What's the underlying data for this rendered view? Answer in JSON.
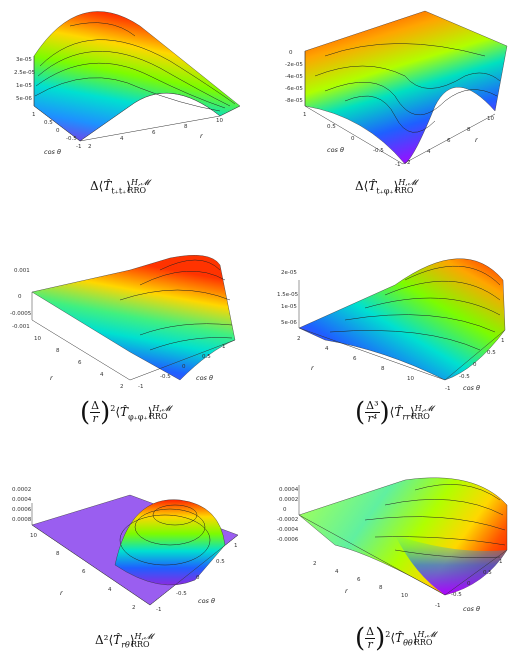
{
  "panels": [
    {
      "id": "ttt",
      "ticks_v": [
        "3e-05",
        "2.5e-05",
        "1e-05",
        "5e-06"
      ],
      "ticks_a": [
        "1",
        "0.5",
        "0",
        "-0.5",
        "-1"
      ],
      "ticks_b": [
        "2",
        "4",
        "6",
        "8",
        "10"
      ],
      "label_a": "cos θ",
      "label_b": "r",
      "caption": {
        "op": "Δ",
        "t": "T",
        "sub": "t₊t₊",
        "state": "H,𝓜",
        "scheme": "RRO"
      }
    },
    {
      "id": "tphi",
      "ticks_v": [
        "0",
        "-2e-05",
        "-4e-05",
        "-6e-05",
        "-8e-05"
      ],
      "ticks_a": [
        "1",
        "0.5",
        "0",
        "-0.5",
        "-1"
      ],
      "ticks_b": [
        "2",
        "4",
        "6",
        "8",
        "10"
      ],
      "label_a": "cos θ",
      "label_b": "r",
      "caption": {
        "op": "Δ",
        "t": "T",
        "sub": "t₊φ₊",
        "state": "H,𝓜",
        "scheme": "RRO"
      }
    },
    {
      "id": "phiphi",
      "ticks_v": [
        "0.001",
        "0",
        "-0.0005",
        "-0.001"
      ],
      "ticks_a": [
        "10",
        "8",
        "6",
        "4",
        "2"
      ],
      "ticks_b": [
        "-1",
        "-0.5",
        "0",
        "0.5",
        "1"
      ],
      "label_a": "r",
      "label_b": "cos θ",
      "caption": {
        "frac_num": "Δ",
        "frac_den": "r",
        "exp": "2",
        "t": "T",
        "sub": "φ₊φ₊",
        "state": "H,𝓜",
        "scheme": "RRO"
      }
    },
    {
      "id": "rr",
      "ticks_v": [
        "2e-05",
        "1.5e-05",
        "1e-05",
        "5e-06"
      ],
      "ticks_a": [
        "2",
        "4",
        "6",
        "8",
        "10"
      ],
      "ticks_b": [
        "-1",
        "-0.5",
        "0",
        "0.5",
        "1"
      ],
      "label_a": "r",
      "label_b": "cos θ",
      "caption": {
        "frac_num": "Δ³",
        "frac_den": "r⁴",
        "t": "T",
        "sub": "rr",
        "state": "H,𝓜",
        "scheme": "RRO"
      }
    },
    {
      "id": "rtheta",
      "ticks_v": [
        "0.0002",
        "0.0004",
        "0.0006",
        "0.0008"
      ],
      "ticks_a": [
        "10",
        "8",
        "6",
        "4",
        "2"
      ],
      "ticks_b": [
        "-1",
        "-0.5",
        "0",
        "0.5",
        "1"
      ],
      "label_a": "r",
      "label_b": "cos θ",
      "caption": {
        "op": "Δ²",
        "t": "T",
        "sub": "rθ",
        "state": "H,𝓜",
        "scheme": "RRO"
      }
    },
    {
      "id": "thetatheta",
      "ticks_v": [
        "0.0004",
        "0.0002",
        "0",
        "-0.0002",
        "-0.0004",
        "-0.0006"
      ],
      "ticks_a": [
        "2",
        "4",
        "6",
        "8",
        "10"
      ],
      "ticks_b": [
        "-1",
        "-0.5",
        "0",
        "0.5",
        "1"
      ],
      "label_a": "r",
      "label_b": "cos θ",
      "caption": {
        "frac_num": "Δ",
        "frac_den": "r",
        "exp": "2",
        "t": "T",
        "sub": "θθ",
        "state": "H,𝓜",
        "scheme": "RRO"
      }
    }
  ]
}
